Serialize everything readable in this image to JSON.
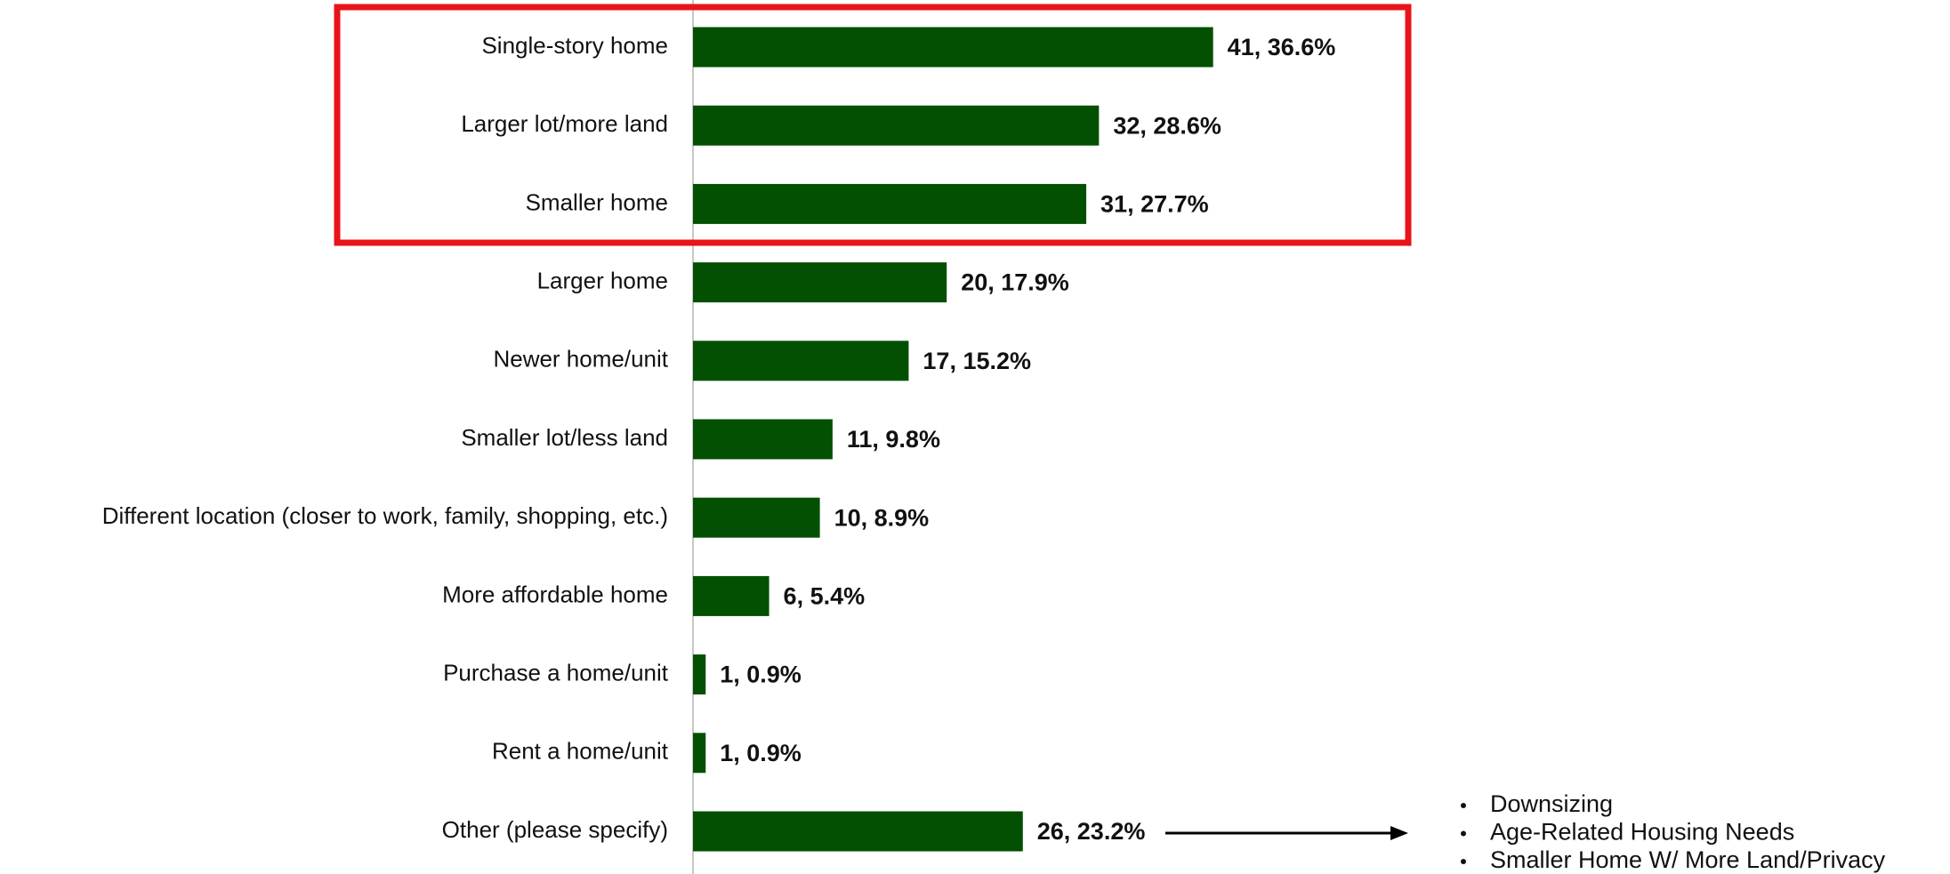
{
  "chart_data": {
    "type": "bar",
    "orientation": "horizontal",
    "color": "#035003",
    "categories": [
      "Single-story home",
      "Larger lot/more land",
      "Smaller home",
      "Larger home",
      "Newer home/unit",
      "Smaller lot/less land",
      "Different location (closer to work, family, shopping, etc.)",
      "More affordable home",
      "Purchase a home/unit",
      "Rent a home/unit",
      "Other (please specify)"
    ],
    "values": [
      41,
      32,
      31,
      20,
      17,
      11,
      10,
      6,
      1,
      1,
      26
    ],
    "value_labels": [
      "41, 36.6%",
      "32, 28.6%",
      "31, 27.7%",
      "20, 17.9%",
      "17, 15.2%",
      "11, 9.8%",
      "10, 8.9%",
      "6, 5.4%",
      "1, 0.9%",
      "1, 0.9%",
      "26, 23.2%"
    ],
    "annotations": [
      "Downsizing",
      "Age-Related Housing Needs",
      "Smaller Home W/ More Land/Privacy"
    ]
  }
}
